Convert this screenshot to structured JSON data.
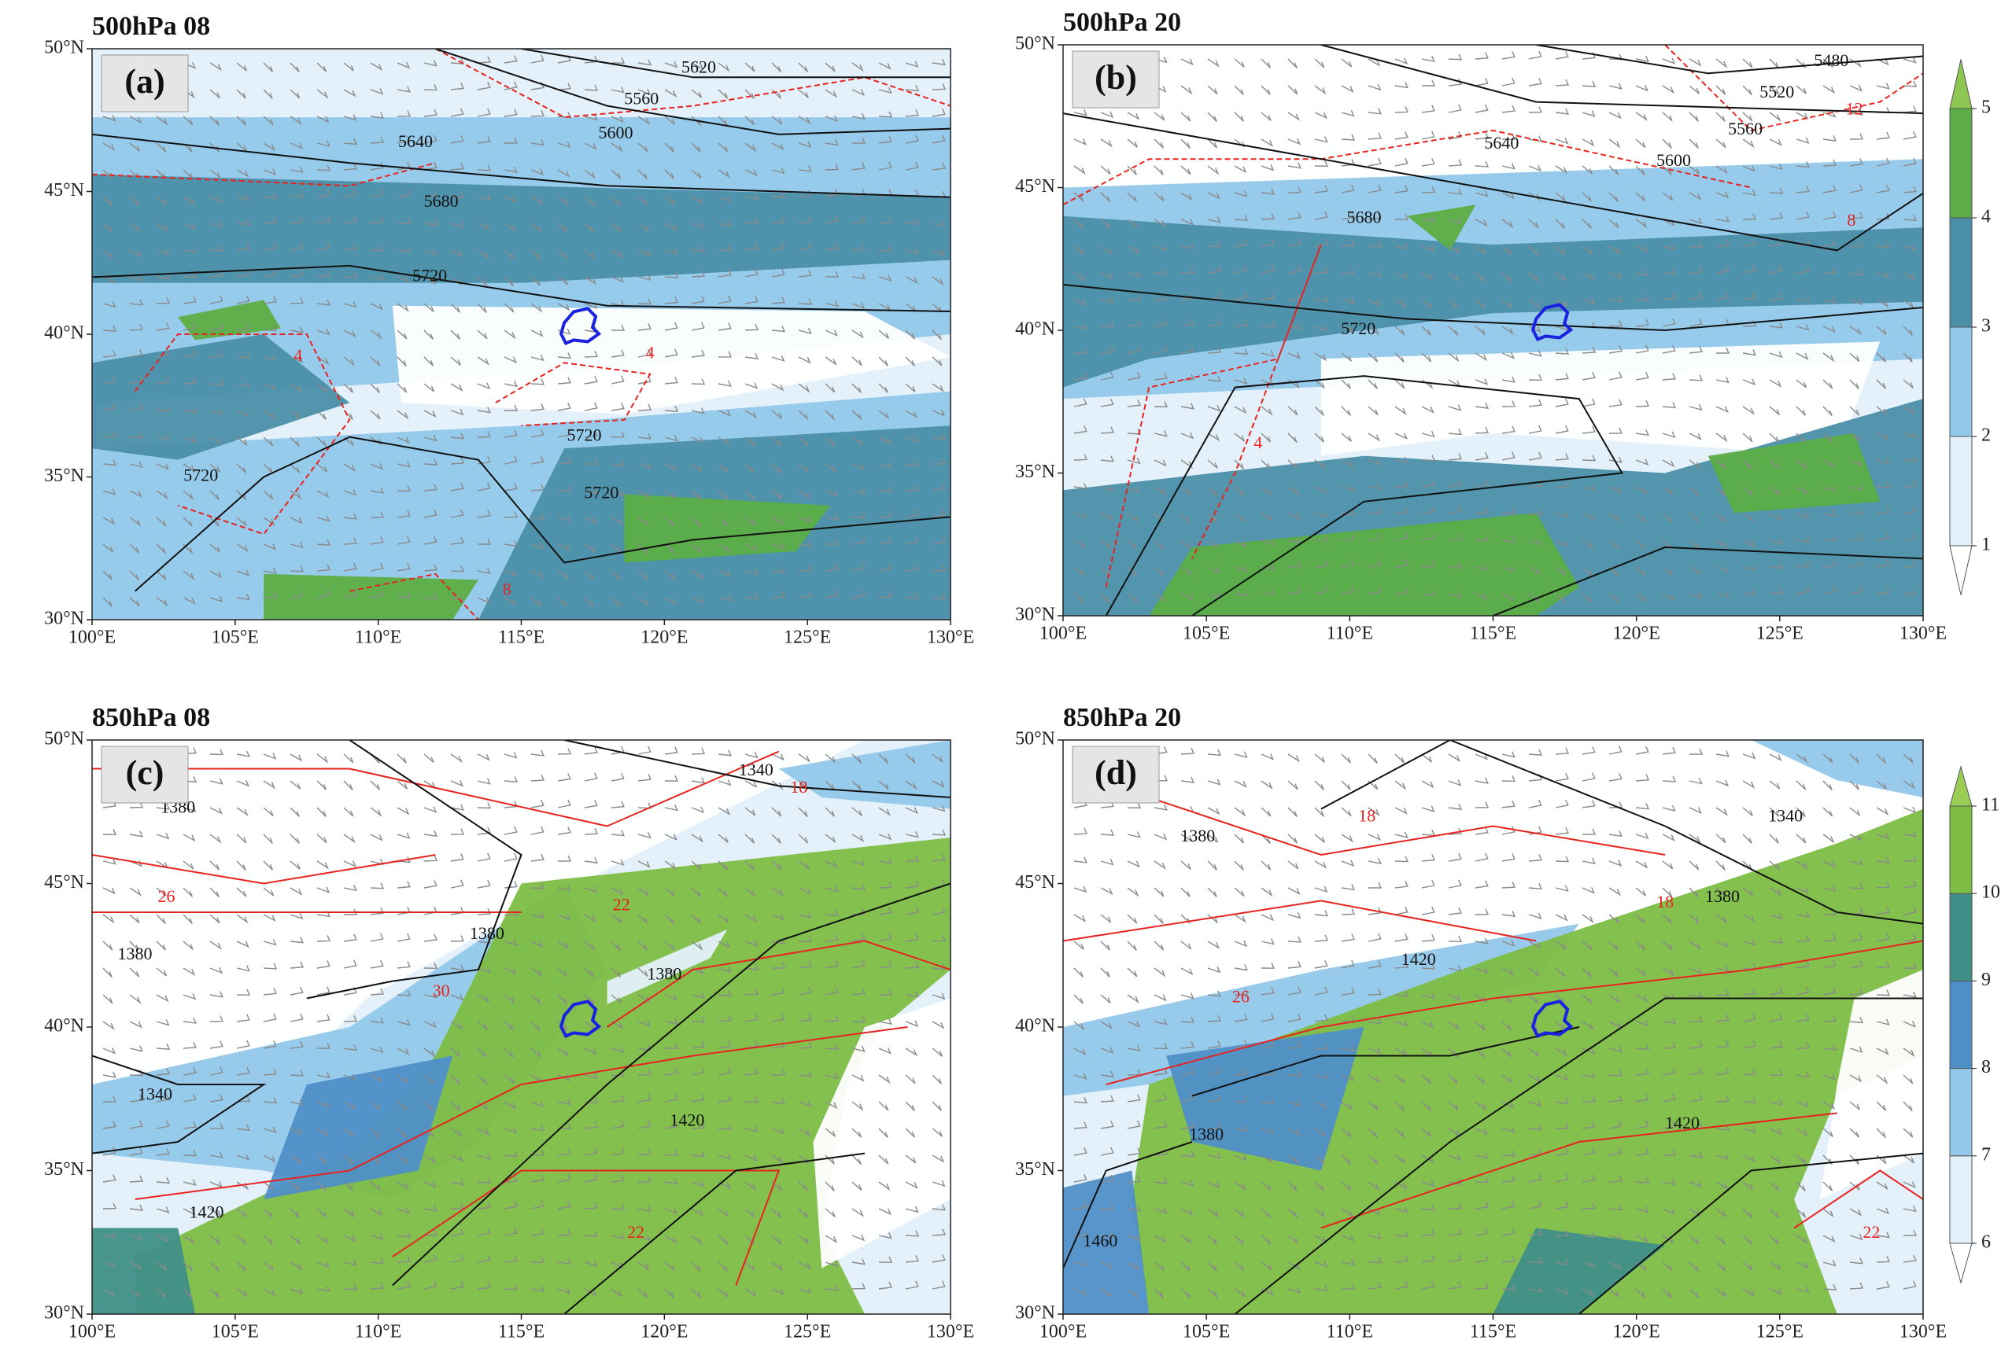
{
  "chart_data": [
    {
      "type": "map",
      "title": "500hPa 08",
      "panel_label": "(a)",
      "colorbar_ref": 1,
      "xlim": [
        100,
        130
      ],
      "ylim": [
        30,
        50
      ],
      "xticks": [
        {
          "value": 100,
          "label": "100°E"
        },
        {
          "value": 105,
          "label": "105°E"
        },
        {
          "value": 110,
          "label": "110°E"
        },
        {
          "value": 115,
          "label": "115°E"
        },
        {
          "value": 120,
          "label": "120°E"
        },
        {
          "value": 125,
          "label": "125°E"
        },
        {
          "value": 130,
          "label": "130°E"
        }
      ],
      "yticks": [
        {
          "value": 30,
          "label": "30°N"
        },
        {
          "value": 35,
          "label": "35°N"
        },
        {
          "value": 40,
          "label": "40°N"
        },
        {
          "value": 45,
          "label": "45°N"
        },
        {
          "value": 50,
          "label": "50°N"
        }
      ],
      "contours": [
        {
          "color": "#111111",
          "values": [
            5620,
            5560,
            5640,
            5600,
            5680,
            5720,
            5720,
            5720,
            5720
          ],
          "x": [
            121.2,
            119.2,
            111.3,
            118.3,
            112.2,
            111.8,
            117.2,
            117.8,
            103.8
          ],
          "y": [
            49.3,
            48.2,
            46.7,
            47.0,
            44.6,
            42.0,
            36.4,
            34.4,
            35.0
          ]
        },
        {
          "color": "#e8231f",
          "values": [
            4,
            4,
            8
          ],
          "x": [
            107.2,
            119.5,
            114.5
          ],
          "y": [
            39.2,
            39.3,
            31.0
          ]
        }
      ]
    },
    {
      "type": "map",
      "title": "500hPa 20",
      "panel_label": "(b)",
      "xlim": [
        100,
        130
      ],
      "ylim": [
        30,
        50
      ],
      "xticks": [
        {
          "value": 100,
          "label": "100°E"
        },
        {
          "value": 105,
          "label": "105°E"
        },
        {
          "value": 110,
          "label": "110°E"
        },
        {
          "value": 115,
          "label": "115°E"
        },
        {
          "value": 120,
          "label": "120°E"
        },
        {
          "value": 125,
          "label": "125°E"
        },
        {
          "value": 130,
          "label": "130°E"
        }
      ],
      "yticks": [
        {
          "value": 30,
          "label": "30°N"
        },
        {
          "value": 35,
          "label": "35°N"
        },
        {
          "value": 40,
          "label": "40°N"
        },
        {
          "value": 45,
          "label": "45°N"
        },
        {
          "value": 50,
          "label": "50°N"
        }
      ],
      "contours": [
        {
          "color": "#111111",
          "values": [
            5480,
            5520,
            5560,
            5600,
            5640,
            5680,
            5720
          ],
          "x": [
            126.8,
            124.9,
            123.8,
            121.3,
            115.3,
            110.5,
            110.3
          ],
          "y": [
            49.4,
            48.3,
            47.0,
            45.9,
            46.5,
            43.9,
            40.0
          ]
        },
        {
          "color": "#e8231f",
          "values": [
            12,
            8,
            4
          ],
          "x": [
            127.6,
            127.5,
            106.8
          ],
          "y": [
            47.7,
            43.8,
            36.0
          ]
        }
      ],
      "colorbar": {
        "ticks": [
          1,
          2,
          3,
          4,
          5
        ],
        "colors": [
          "#e4f1fa",
          "#92c8ea",
          "#4a8fa8",
          "#5cad45"
        ],
        "extend_colors": [
          "#ffffff",
          "#8ec653"
        ]
      }
    },
    {
      "type": "map",
      "title": "850hPa 08",
      "panel_label": "(c)",
      "colorbar_ref": 3,
      "xlim": [
        100,
        130
      ],
      "ylim": [
        30,
        50
      ],
      "xticks": [
        {
          "value": 100,
          "label": "100°E"
        },
        {
          "value": 105,
          "label": "105°E"
        },
        {
          "value": 110,
          "label": "110°E"
        },
        {
          "value": 115,
          "label": "115°E"
        },
        {
          "value": 120,
          "label": "120°E"
        },
        {
          "value": 125,
          "label": "125°E"
        },
        {
          "value": 130,
          "label": "130°E"
        }
      ],
      "yticks": [
        {
          "value": 30,
          "label": "30°N"
        },
        {
          "value": 35,
          "label": "35°N"
        },
        {
          "value": 40,
          "label": "40°N"
        },
        {
          "value": 45,
          "label": "45°N"
        },
        {
          "value": 50,
          "label": "50°N"
        }
      ],
      "contours": [
        {
          "color": "#111111",
          "values": [
            1340,
            1380,
            1380,
            1380,
            1380,
            1420,
            1340,
            1420
          ],
          "x": [
            123.2,
            103.0,
            101.5,
            113.8,
            120.0,
            120.8,
            102.2,
            104.0
          ],
          "y": [
            48.9,
            47.6,
            42.5,
            43.2,
            41.8,
            36.7,
            37.6,
            33.5
          ]
        },
        {
          "color": "#e8231f",
          "values": [
            18,
            26,
            22,
            30,
            22
          ],
          "x": [
            124.7,
            102.6,
            118.5,
            112.2,
            119.0
          ],
          "y": [
            48.3,
            44.5,
            44.2,
            41.2,
            32.8
          ]
        }
      ]
    },
    {
      "type": "map",
      "title": "850hPa 20",
      "panel_label": "(d)",
      "xlim": [
        100,
        130
      ],
      "ylim": [
        30,
        50
      ],
      "xticks": [
        {
          "value": 100,
          "label": "100°E"
        },
        {
          "value": 105,
          "label": "105°E"
        },
        {
          "value": 110,
          "label": "110°E"
        },
        {
          "value": 115,
          "label": "115°E"
        },
        {
          "value": 120,
          "label": "120°E"
        },
        {
          "value": 125,
          "label": "125°E"
        },
        {
          "value": 130,
          "label": "130°E"
        }
      ],
      "yticks": [
        {
          "value": 30,
          "label": "30°N"
        },
        {
          "value": 35,
          "label": "35°N"
        },
        {
          "value": 40,
          "label": "40°N"
        },
        {
          "value": 45,
          "label": "45°N"
        },
        {
          "value": 50,
          "label": "50°N"
        }
      ],
      "contours": [
        {
          "color": "#111111",
          "values": [
            1340,
            1380,
            1380,
            1420,
            1380,
            1420,
            1460
          ],
          "x": [
            125.2,
            104.7,
            123.0,
            112.4,
            105.0,
            121.6,
            101.3
          ],
          "y": [
            47.3,
            46.6,
            44.5,
            42.3,
            36.2,
            36.6,
            32.5
          ]
        },
        {
          "color": "#e8231f",
          "values": [
            18,
            26,
            22,
            18
          ],
          "x": [
            110.6,
            106.2,
            128.2,
            121.0
          ],
          "y": [
            47.3,
            41.0,
            32.8,
            44.3
          ]
        }
      ],
      "colorbar": {
        "ticks": [
          6,
          7,
          8,
          9,
          10,
          11
        ],
        "colors": [
          "#e4f1fa",
          "#92c8ea",
          "#4f8fc8",
          "#3f8f88",
          "#7dbd44"
        ],
        "extend_colors": [
          "#ffffff",
          "#9bcd55"
        ]
      }
    }
  ]
}
